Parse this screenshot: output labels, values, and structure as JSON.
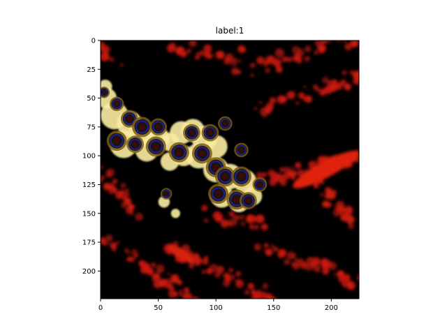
{
  "chart_data": {
    "type": "heatmap",
    "title": "label:1",
    "xlabel": "",
    "ylabel": "",
    "xlim": [
      0,
      224
    ],
    "ylim": [
      224,
      0
    ],
    "x_ticks": [
      0,
      50,
      100,
      150,
      200
    ],
    "y_ticks": [
      0,
      25,
      50,
      75,
      100,
      125,
      150,
      175,
      200
    ],
    "grid": false,
    "image": {
      "description_colors": {
        "background": "#000000",
        "texture": "#cc1a0e",
        "highlight": "#f7e9a0",
        "ring": "#7a5a10",
        "spot_core": "#1a1f8a"
      },
      "spots": [
        [
          3,
          45,
          4
        ],
        [
          14,
          55,
          5
        ],
        [
          25,
          68,
          6
        ],
        [
          36,
          75,
          7
        ],
        [
          30,
          90,
          6
        ],
        [
          14,
          87,
          7
        ],
        [
          48,
          92,
          7
        ],
        [
          50,
          75,
          6
        ],
        [
          68,
          97,
          7
        ],
        [
          79,
          80,
          6
        ],
        [
          95,
          80,
          6
        ],
        [
          88,
          98,
          7
        ],
        [
          100,
          110,
          7
        ],
        [
          108,
          118,
          7
        ],
        [
          122,
          118,
          7
        ],
        [
          102,
          133,
          7
        ],
        [
          118,
          138,
          7
        ],
        [
          128,
          139,
          6
        ],
        [
          138,
          125,
          5
        ],
        [
          122,
          95,
          5
        ],
        [
          57,
          133,
          4
        ],
        [
          108,
          72,
          5
        ]
      ]
    }
  }
}
